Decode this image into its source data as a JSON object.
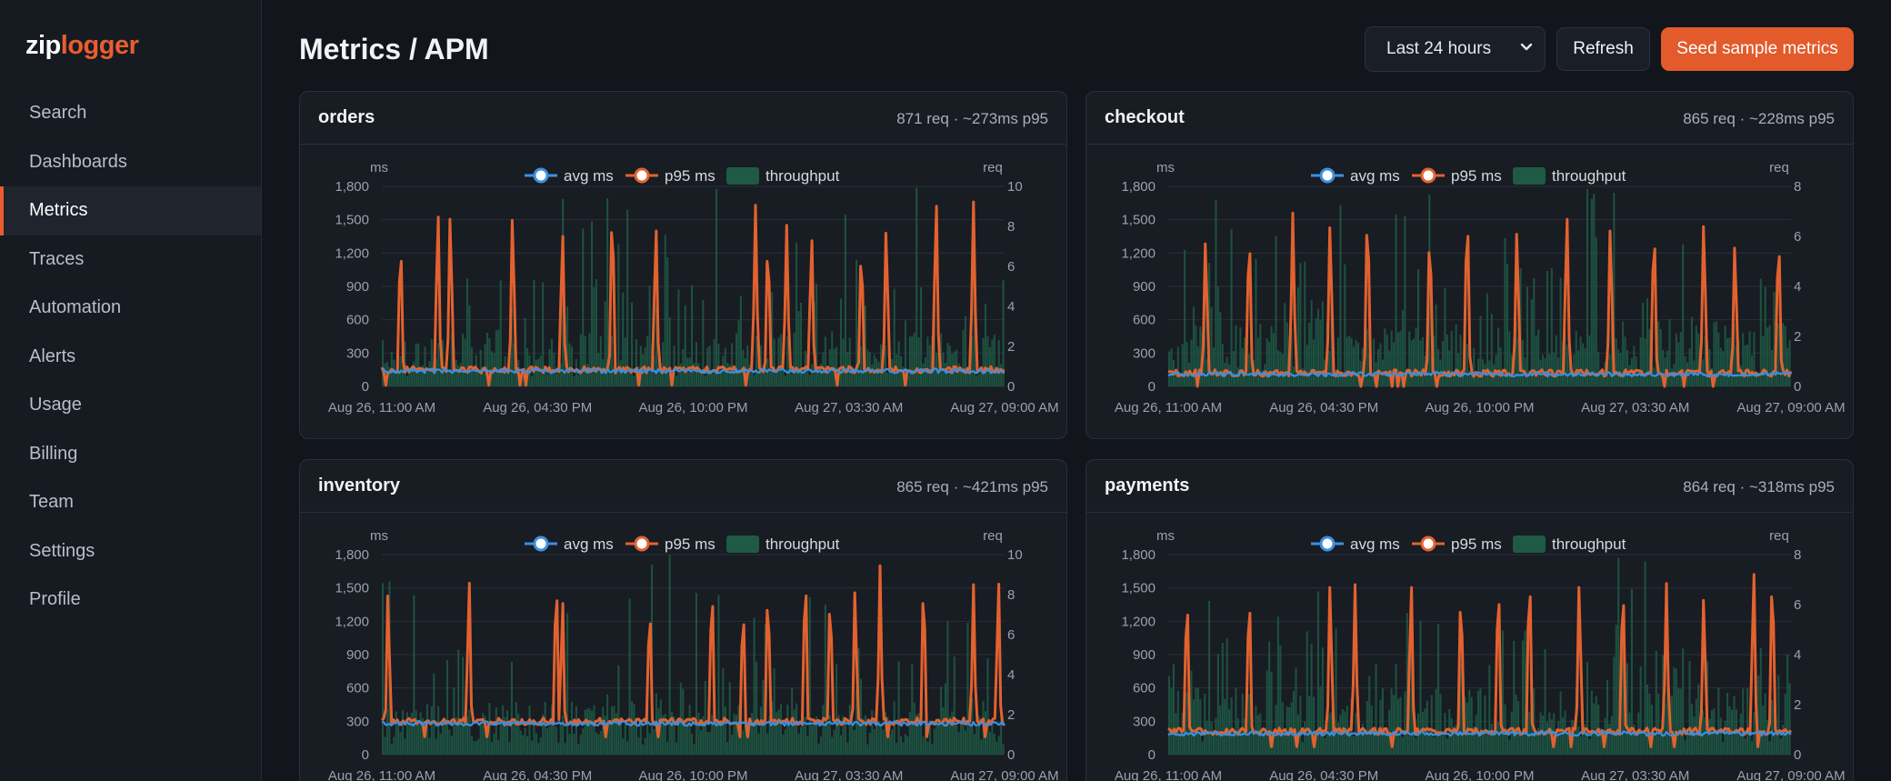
{
  "app": {
    "logo_part1": "zip",
    "logo_part2": "logger",
    "accent": "#e85d2f"
  },
  "sidebar": {
    "items": [
      {
        "label": "Search",
        "active": false
      },
      {
        "label": "Dashboards",
        "active": false
      },
      {
        "label": "Metrics",
        "active": true
      },
      {
        "label": "Traces",
        "active": false
      },
      {
        "label": "Automation",
        "active": false
      },
      {
        "label": "Alerts",
        "active": false
      },
      {
        "label": "Usage",
        "active": false
      },
      {
        "label": "Billing",
        "active": false
      },
      {
        "label": "Team",
        "active": false
      },
      {
        "label": "Settings",
        "active": false
      },
      {
        "label": "Profile",
        "active": false
      }
    ]
  },
  "header": {
    "title": "Metrics / APM",
    "range_select": {
      "value": "Last 24 hours"
    },
    "refresh_label": "Refresh",
    "seed_label": "Seed sample metrics"
  },
  "legend": {
    "avg": "avg ms",
    "p95": "p95 ms",
    "throughput": "throughput"
  },
  "colors": {
    "avg": "#3d8fe0",
    "p95": "#e2622f",
    "throughput": "#1f5a45"
  },
  "cards": [
    {
      "service": "orders",
      "summary": "871 req · ~273ms p95"
    },
    {
      "service": "checkout",
      "summary": "865 req · ~228ms p95"
    },
    {
      "service": "inventory",
      "summary": "865 req · ~421ms p95"
    },
    {
      "service": "payments",
      "summary": "864 req · ~318ms p95"
    }
  ],
  "chart_data": [
    {
      "type": "line",
      "service": "orders",
      "x_ticks": [
        "Aug 26, 11:00 AM",
        "Aug 26, 04:30 PM",
        "Aug 26, 10:00 PM",
        "Aug 27, 03:30 AM",
        "Aug 27, 09:00 AM"
      ],
      "y_left": {
        "label": "ms",
        "min": 0,
        "max": 1800,
        "ticks": [
          "0",
          "300",
          "600",
          "900",
          "1,200",
          "1,500",
          "1,800"
        ]
      },
      "y_right": {
        "label": "req",
        "min": 0,
        "max": 10,
        "ticks": [
          "0",
          "2",
          "4",
          "6",
          "8",
          "10"
        ]
      },
      "avg_level_ms": 140,
      "p95_base_ms": 150,
      "throughput_typical": 2,
      "p95_spikes": [
        [
          0.03,
          1300
        ],
        [
          0.09,
          1580
        ],
        [
          0.11,
          1560
        ],
        [
          0.21,
          1550
        ],
        [
          0.29,
          1400
        ],
        [
          0.37,
          1600
        ],
        [
          0.44,
          1450
        ],
        [
          0.6,
          1630
        ],
        [
          0.62,
          1300
        ],
        [
          0.65,
          1450
        ],
        [
          0.69,
          1360
        ],
        [
          0.77,
          1250
        ],
        [
          0.81,
          1430
        ],
        [
          0.89,
          1680
        ],
        [
          0.95,
          1660
        ]
      ],
      "grid": true,
      "legend_position": "top-center"
    },
    {
      "type": "line",
      "service": "checkout",
      "x_ticks": [
        "Aug 26, 11:00 AM",
        "Aug 26, 04:30 PM",
        "Aug 26, 10:00 PM",
        "Aug 27, 03:30 AM",
        "Aug 27, 09:00 AM"
      ],
      "y_left": {
        "label": "ms",
        "min": 0,
        "max": 1800,
        "ticks": [
          "0",
          "300",
          "600",
          "900",
          "1,200",
          "1,500",
          "1,800"
        ]
      },
      "y_right": {
        "label": "req",
        "min": 0,
        "max": 8,
        "ticks": [
          "0",
          "2",
          "4",
          "6",
          "8"
        ]
      },
      "avg_level_ms": 110,
      "p95_base_ms": 120,
      "throughput_typical": 2,
      "p95_spikes": [
        [
          0.06,
          1330
        ],
        [
          0.13,
          1380
        ],
        [
          0.2,
          1560
        ],
        [
          0.26,
          1480
        ],
        [
          0.32,
          1570
        ],
        [
          0.42,
          1390
        ],
        [
          0.48,
          1560
        ],
        [
          0.56,
          1420
        ],
        [
          0.64,
          1560
        ],
        [
          0.71,
          1450
        ],
        [
          0.78,
          1430
        ],
        [
          0.86,
          1490
        ],
        [
          0.91,
          1290
        ],
        [
          0.98,
          1350
        ]
      ],
      "grid": true,
      "legend_position": "top-center"
    },
    {
      "type": "line",
      "service": "inventory",
      "x_ticks": [
        "Aug 26, 11:00 AM",
        "Aug 26, 04:30 PM",
        "Aug 26, 10:00 PM",
        "Aug 27, 03:30 AM",
        "Aug 27, 09:00 AM"
      ],
      "y_left": {
        "label": "ms",
        "min": 0,
        "max": 1800,
        "ticks": [
          "0",
          "300",
          "600",
          "900",
          "1,200",
          "1,500",
          "1,800"
        ]
      },
      "y_right": {
        "label": "req",
        "min": 0,
        "max": 10,
        "ticks": [
          "0",
          "2",
          "4",
          "6",
          "8",
          "10"
        ]
      },
      "avg_level_ms": 280,
      "p95_base_ms": 300,
      "throughput_typical": 2,
      "p95_spikes": [
        [
          0.01,
          1480
        ],
        [
          0.14,
          1600
        ],
        [
          0.28,
          1600
        ],
        [
          0.29,
          1410
        ],
        [
          0.43,
          1360
        ],
        [
          0.53,
          1540
        ],
        [
          0.58,
          1350
        ],
        [
          0.62,
          1500
        ],
        [
          0.68,
          1650
        ],
        [
          0.72,
          1460
        ],
        [
          0.76,
          1510
        ],
        [
          0.8,
          1700
        ],
        [
          0.87,
          1570
        ],
        [
          0.95,
          1530
        ],
        [
          0.99,
          1590
        ]
      ],
      "grid": true,
      "legend_position": "top-center"
    },
    {
      "type": "line",
      "service": "payments",
      "x_ticks": [
        "Aug 26, 11:00 AM",
        "Aug 26, 04:30 PM",
        "Aug 26, 10:00 PM",
        "Aug 27, 03:30 AM",
        "Aug 27, 09:00 AM"
      ],
      "y_left": {
        "label": "ms",
        "min": 0,
        "max": 1800,
        "ticks": [
          "0",
          "300",
          "600",
          "900",
          "1,200",
          "1,500",
          "1,800"
        ]
      },
      "y_right": {
        "label": "req",
        "min": 0,
        "max": 8,
        "ticks": [
          "0",
          "2",
          "4",
          "6",
          "8"
        ]
      },
      "avg_level_ms": 190,
      "p95_base_ms": 210,
      "throughput_typical": 2,
      "p95_spikes": [
        [
          0.03,
          1450
        ],
        [
          0.13,
          1470
        ],
        [
          0.26,
          1560
        ],
        [
          0.3,
          1530
        ],
        [
          0.39,
          1560
        ],
        [
          0.47,
          1480
        ],
        [
          0.53,
          1560
        ],
        [
          0.58,
          1640
        ],
        [
          0.66,
          1560
        ],
        [
          0.73,
          1550
        ],
        [
          0.8,
          1540
        ],
        [
          0.86,
          1440
        ],
        [
          0.94,
          1680
        ],
        [
          0.97,
          1640
        ]
      ],
      "grid": true,
      "legend_position": "top-center"
    }
  ]
}
